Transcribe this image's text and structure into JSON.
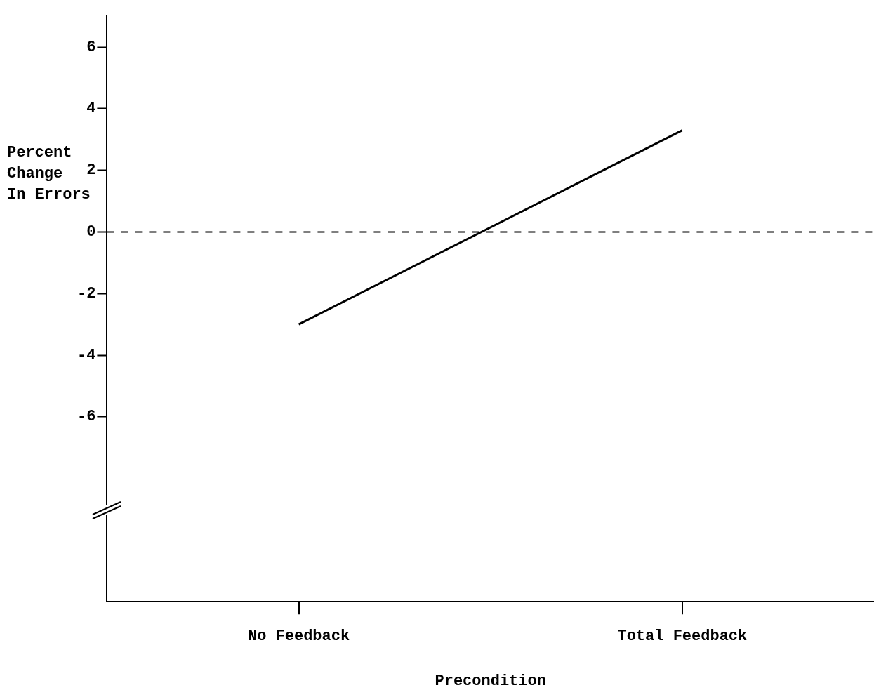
{
  "chart_data": {
    "type": "line",
    "xlabel": "Precondition",
    "ylabel": "Percent\nChange\nIn Errors",
    "categories": [
      "No Feedback",
      "Total Feedback"
    ],
    "series": [
      {
        "color": "#000000",
        "values": [
          -3.0,
          3.3
        ]
      }
    ],
    "ylim": [
      -12,
      7
    ],
    "yticks": [
      -6,
      -4,
      -2,
      0,
      2,
      4,
      6
    ],
    "grid": false,
    "legend": false,
    "marker": "none",
    "line_style": "solid",
    "ref_lines": [
      {
        "axis": "y",
        "value": 0,
        "line_style": "dashed",
        "color": "#000000"
      }
    ]
  }
}
